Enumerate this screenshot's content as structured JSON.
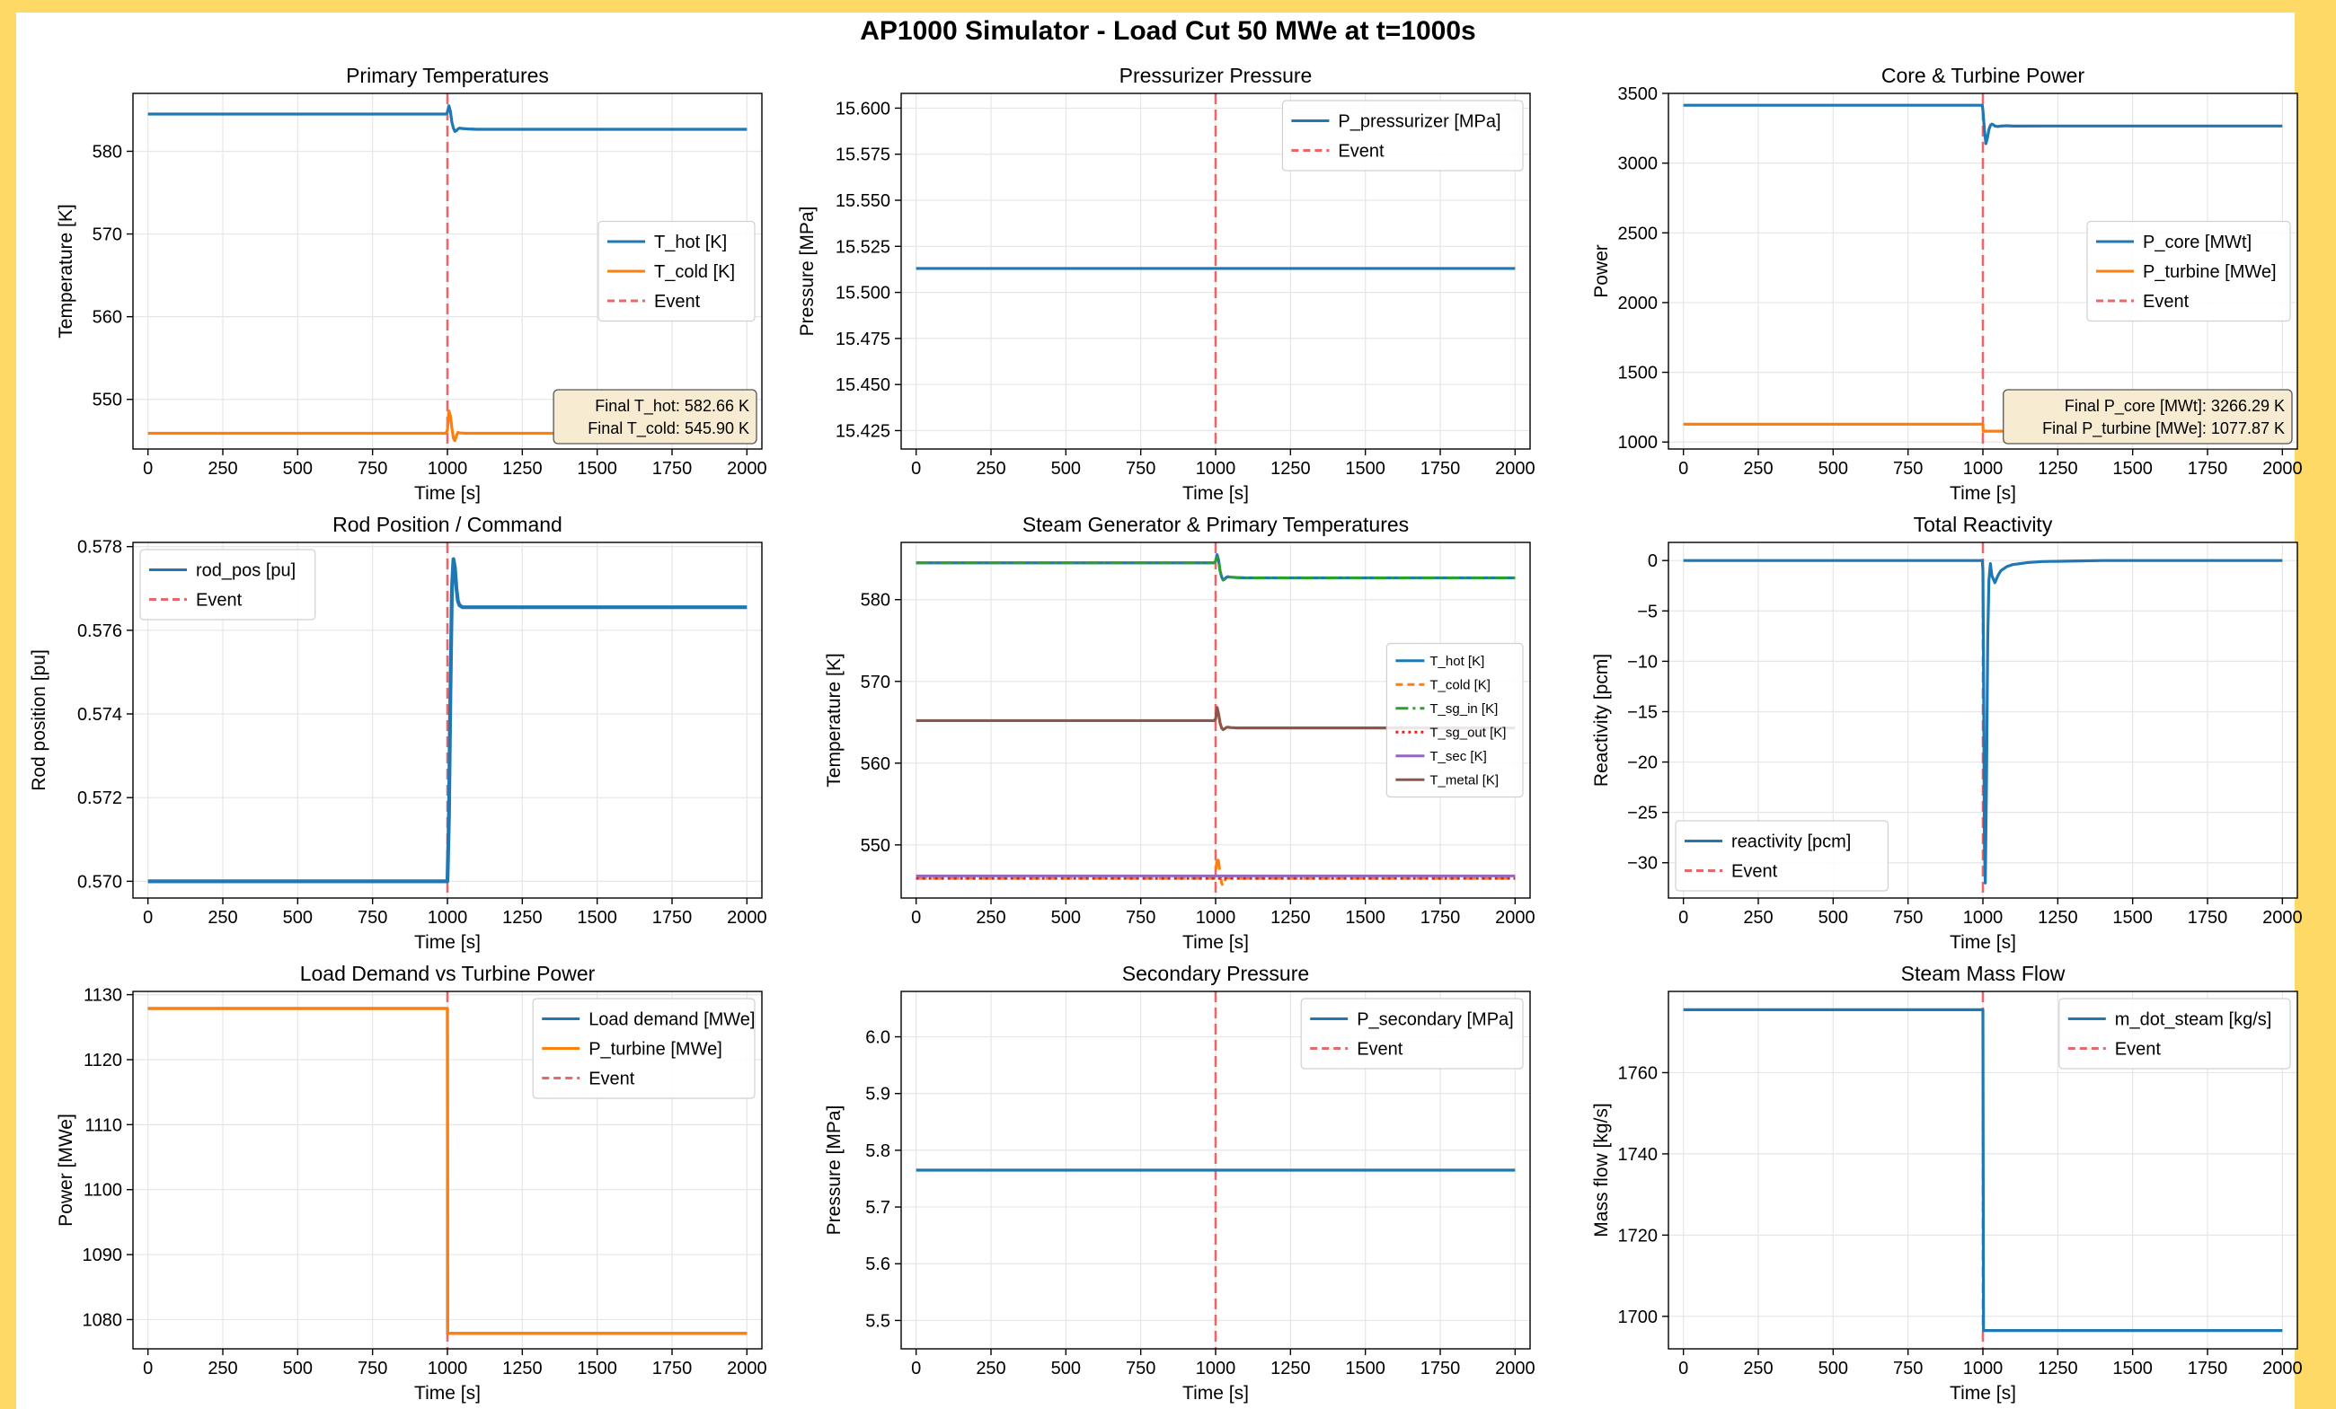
{
  "suptitle": "AP1000 Simulator - Load Cut 50 MWe at t=1000s",
  "colors": {
    "blue": "#1f77b4",
    "orange": "#ff7f0e",
    "green": "#2ca02c",
    "red": "#d62728",
    "purple": "#9467bd",
    "brown": "#8c564b",
    "event": "#e8676a"
  },
  "chart_data": [
    {
      "type": "line",
      "title": "Primary Temperatures",
      "xlabel": "Time [s]",
      "ylabel": "Temperature [K]",
      "xlim": [
        -50,
        2050
      ],
      "ylim": [
        544,
        587
      ],
      "xticks": [
        0,
        250,
        500,
        750,
        1000,
        1250,
        1500,
        1750,
        2000
      ],
      "yticks": [
        550,
        560,
        570,
        580
      ],
      "grid": true,
      "legend": "center-right",
      "event_x": 1000,
      "series": [
        {
          "name": "T_hot [K]",
          "color": "#1f77b4",
          "style": "solid",
          "width": 3.2,
          "x": [
            0,
            995,
            1000,
            1005,
            1010,
            1015,
            1020,
            1025,
            1030,
            1035,
            1040,
            1050,
            1070,
            1100,
            1200,
            2000
          ],
          "y": [
            584.5,
            584.5,
            584.7,
            585.5,
            584.8,
            583.5,
            582.8,
            582.4,
            582.5,
            582.7,
            582.8,
            582.75,
            582.7,
            582.66,
            582.66,
            582.66
          ]
        },
        {
          "name": "T_cold [K]",
          "color": "#ff7f0e",
          "style": "solid",
          "width": 3.2,
          "x": [
            0,
            995,
            1000,
            1005,
            1010,
            1015,
            1020,
            1025,
            1030,
            1035,
            1040,
            1060,
            1100,
            2000
          ],
          "y": [
            545.9,
            545.9,
            546.3,
            548.6,
            548.0,
            546.5,
            545.3,
            545.0,
            545.6,
            546.0,
            545.95,
            545.9,
            545.9,
            545.9
          ]
        }
      ],
      "annotation": [
        "Final T_hot: 582.66 K",
        "Final T_cold: 545.90 K"
      ],
      "legend_entries": [
        {
          "label": "T_hot [K]",
          "color": "#1f77b4",
          "style": "solid"
        },
        {
          "label": "T_cold [K]",
          "color": "#ff7f0e",
          "style": "solid"
        },
        {
          "label": "Event",
          "color": "#e8676a",
          "style": "dashed"
        }
      ]
    },
    {
      "type": "line",
      "title": "Pressurizer Pressure",
      "xlabel": "Time [s]",
      "ylabel": "Pressure [MPa]",
      "xlim": [
        -50,
        2050
      ],
      "ylim": [
        15.415,
        15.608
      ],
      "xticks": [
        0,
        250,
        500,
        750,
        1000,
        1250,
        1500,
        1750,
        2000
      ],
      "yticks": [
        15.425,
        15.45,
        15.475,
        15.5,
        15.525,
        15.55,
        15.575,
        15.6
      ],
      "ytick_labels": [
        "15.425",
        "15.450",
        "15.475",
        "15.500",
        "15.525",
        "15.550",
        "15.575",
        "15.600"
      ],
      "grid": true,
      "legend": "upper-right",
      "event_x": 1000,
      "series": [
        {
          "name": "P_pressurizer [MPa]",
          "color": "#1f77b4",
          "style": "solid",
          "width": 3.2,
          "x": [
            0,
            2000
          ],
          "y": [
            15.513,
            15.513
          ]
        }
      ],
      "legend_entries": [
        {
          "label": "P_pressurizer [MPa]",
          "color": "#1f77b4",
          "style": "solid"
        },
        {
          "label": "Event",
          "color": "#e8676a",
          "style": "dashed"
        }
      ]
    },
    {
      "type": "line",
      "title": "Core & Turbine Power",
      "xlabel": "Time [s]",
      "ylabel": "Power",
      "xlim": [
        -50,
        2050
      ],
      "ylim": [
        950,
        3500
      ],
      "xticks": [
        0,
        250,
        500,
        750,
        1000,
        1250,
        1500,
        1750,
        2000
      ],
      "yticks": [
        1000,
        1500,
        2000,
        2500,
        3000,
        3500
      ],
      "grid": true,
      "legend": "center-right",
      "event_x": 1000,
      "series": [
        {
          "name": "P_core [MWt]",
          "color": "#1f77b4",
          "style": "solid",
          "width": 3.2,
          "x": [
            0,
            998,
            1000,
            1005,
            1010,
            1015,
            1020,
            1025,
            1030,
            1035,
            1040,
            1050,
            1060,
            1080,
            1100,
            1200,
            2000
          ],
          "y": [
            3415,
            3415,
            3380,
            3240,
            3140,
            3180,
            3240,
            3270,
            3280,
            3275,
            3266,
            3262,
            3266,
            3268,
            3266,
            3266.29,
            3266.29
          ]
        },
        {
          "name": "P_turbine [MWe]",
          "color": "#ff7f0e",
          "style": "solid",
          "width": 3.2,
          "x": [
            0,
            1000,
            1001,
            2000
          ],
          "y": [
            1127.87,
            1127.87,
            1077.87,
            1077.87
          ]
        }
      ],
      "annotation": [
        "Final P_core [MWt]: 3266.29 K",
        "Final P_turbine [MWe]: 1077.87 K"
      ],
      "legend_entries": [
        {
          "label": "P_core [MWt]",
          "color": "#1f77b4",
          "style": "solid"
        },
        {
          "label": "P_turbine [MWe]",
          "color": "#ff7f0e",
          "style": "solid"
        },
        {
          "label": "Event",
          "color": "#e8676a",
          "style": "dashed"
        }
      ]
    },
    {
      "type": "line",
      "title": "Rod Position / Command",
      "xlabel": "Time [s]",
      "ylabel": "Rod position [pu]",
      "xlim": [
        -50,
        2050
      ],
      "ylim": [
        0.5696,
        0.5781
      ],
      "xticks": [
        0,
        250,
        500,
        750,
        1000,
        1250,
        1500,
        1750,
        2000
      ],
      "yticks": [
        0.57,
        0.572,
        0.574,
        0.576,
        0.578
      ],
      "ytick_labels": [
        "0.570",
        "0.572",
        "0.574",
        "0.576",
        "0.578"
      ],
      "grid": true,
      "legend": "upper-left",
      "event_x": 1000,
      "series": [
        {
          "name": "rod_pos [pu]",
          "color": "#1f77b4",
          "style": "solid",
          "width": 4.2,
          "x": [
            0,
            1000,
            1005,
            1010,
            1015,
            1020,
            1025,
            1030,
            1035,
            1040,
            1050,
            1060,
            1080,
            1100,
            2000
          ],
          "y": [
            0.57,
            0.57,
            0.5715,
            0.5745,
            0.577,
            0.5777,
            0.5775,
            0.577,
            0.5767,
            0.5766,
            0.57655,
            0.57655,
            0.57655,
            0.57655,
            0.57655
          ]
        }
      ],
      "legend_entries": [
        {
          "label": "rod_pos [pu]",
          "color": "#1f77b4",
          "style": "solid"
        },
        {
          "label": "Event",
          "color": "#e8676a",
          "style": "dashed"
        }
      ]
    },
    {
      "type": "line",
      "title": "Steam Generator & Primary Temperatures",
      "xlabel": "Time [s]",
      "ylabel": "Temperature [K]",
      "xlim": [
        -50,
        2050
      ],
      "ylim": [
        543.5,
        587
      ],
      "xticks": [
        0,
        250,
        500,
        750,
        1000,
        1250,
        1500,
        1750,
        2000
      ],
      "yticks": [
        550,
        560,
        570,
        580
      ],
      "grid": true,
      "legend": "center-right",
      "legend_small": true,
      "event_x": 1000,
      "series": [
        {
          "name": "T_hot [K]",
          "color": "#1f77b4",
          "style": "solid",
          "width": 3.2,
          "x": [
            0,
            995,
            1000,
            1005,
            1010,
            1015,
            1020,
            1025,
            1030,
            1035,
            1040,
            1050,
            1070,
            1100,
            2000
          ],
          "y": [
            584.5,
            584.5,
            584.7,
            585.5,
            584.8,
            583.5,
            582.8,
            582.4,
            582.5,
            582.7,
            582.8,
            582.75,
            582.7,
            582.66,
            582.66
          ]
        },
        {
          "name": "T_cold [K]",
          "color": "#ff7f0e",
          "style": "dashed",
          "width": 3,
          "x": [
            0,
            995,
            1000,
            1005,
            1010,
            1015,
            1020,
            1025,
            1030,
            1035,
            1040,
            1060,
            2000
          ],
          "y": [
            545.9,
            545.9,
            546.3,
            548.6,
            548.0,
            546.5,
            545.3,
            545.0,
            545.6,
            546.0,
            545.95,
            545.9,
            545.9
          ]
        },
        {
          "name": "T_sg_in [K]",
          "color": "#2ca02c",
          "style": "dashdot",
          "width": 3,
          "x": [
            0,
            995,
            1000,
            1005,
            1010,
            1015,
            1020,
            1025,
            1030,
            1035,
            1040,
            1050,
            1070,
            1100,
            2000
          ],
          "y": [
            584.5,
            584.5,
            584.7,
            585.5,
            584.8,
            583.5,
            582.8,
            582.4,
            582.5,
            582.7,
            582.8,
            582.75,
            582.7,
            582.66,
            582.66
          ]
        },
        {
          "name": "T_sg_out [K]",
          "color": "#d62728",
          "style": "dotted",
          "width": 3,
          "x": [
            0,
            2000
          ],
          "y": [
            545.9,
            545.9
          ]
        },
        {
          "name": "T_sec [K]",
          "color": "#9467bd",
          "style": "solid",
          "width": 3,
          "x": [
            0,
            2000
          ],
          "y": [
            546.2,
            546.2
          ]
        },
        {
          "name": "T_metal [K]",
          "color": "#8c564b",
          "style": "solid",
          "width": 3.2,
          "x": [
            0,
            995,
            1000,
            1005,
            1010,
            1015,
            1020,
            1025,
            1030,
            1035,
            1040,
            1050,
            1070,
            1100,
            2000
          ],
          "y": [
            565.2,
            565.2,
            565.4,
            566.8,
            566.0,
            564.9,
            564.3,
            564.1,
            564.2,
            564.35,
            564.4,
            564.35,
            564.3,
            564.3,
            564.3
          ]
        }
      ],
      "legend_entries": [
        {
          "label": "T_hot [K]",
          "color": "#1f77b4",
          "style": "solid"
        },
        {
          "label": "T_cold [K]",
          "color": "#ff7f0e",
          "style": "dashed"
        },
        {
          "label": "T_sg_in [K]",
          "color": "#2ca02c",
          "style": "dashdot"
        },
        {
          "label": "T_sg_out [K]",
          "color": "#d62728",
          "style": "dotted"
        },
        {
          "label": "T_sec [K]",
          "color": "#9467bd",
          "style": "solid"
        },
        {
          "label": "T_metal [K]",
          "color": "#8c564b",
          "style": "solid"
        }
      ]
    },
    {
      "type": "line",
      "title": "Total Reactivity",
      "xlabel": "Time [s]",
      "ylabel": "Reactivity [pcm]",
      "xlim": [
        -50,
        2050
      ],
      "ylim": [
        -33.5,
        1.8
      ],
      "xticks": [
        0,
        250,
        500,
        750,
        1000,
        1250,
        1500,
        1750,
        2000
      ],
      "yticks": [
        -30,
        -25,
        -20,
        -15,
        -10,
        -5,
        0
      ],
      "grid": true,
      "legend": "lower-left",
      "event_x": 1000,
      "series": [
        {
          "name": "reactivity [pcm]",
          "color": "#1f77b4",
          "style": "solid",
          "width": 3.2,
          "x": [
            0,
            998,
            1000,
            1003,
            1005,
            1008,
            1012,
            1016,
            1020,
            1025,
            1030,
            1040,
            1050,
            1060,
            1080,
            1100,
            1150,
            1200,
            1300,
            1400,
            2000
          ],
          "y": [
            0,
            0,
            -1,
            -15,
            -28,
            -32,
            -22,
            -8,
            -2,
            -0.3,
            -1.5,
            -2.2,
            -1.5,
            -1.0,
            -0.6,
            -0.4,
            -0.2,
            -0.1,
            -0.05,
            0,
            0
          ]
        }
      ],
      "legend_entries": [
        {
          "label": "reactivity [pcm]",
          "color": "#1f77b4",
          "style": "solid"
        },
        {
          "label": "Event",
          "color": "#e8676a",
          "style": "dashed"
        }
      ]
    },
    {
      "type": "line",
      "title": "Load Demand vs Turbine Power",
      "xlabel": "Time [s]",
      "ylabel": "Power [MWe]",
      "xlim": [
        -50,
        2050
      ],
      "ylim": [
        1075.5,
        1130.5
      ],
      "xticks": [
        0,
        250,
        500,
        750,
        1000,
        1250,
        1500,
        1750,
        2000
      ],
      "yticks": [
        1080,
        1090,
        1100,
        1110,
        1120,
        1130
      ],
      "grid": true,
      "legend": "upper-right",
      "event_x": 1000,
      "series": [
        {
          "name": "Load demand [MWe]",
          "color": "#1f77b4",
          "style": "solid",
          "width": 3.2,
          "x": [
            0,
            1000,
            1000.5,
            2000
          ],
          "y": [
            1127.87,
            1127.87,
            1077.87,
            1077.87
          ]
        },
        {
          "name": "P_turbine [MWe]",
          "color": "#ff7f0e",
          "style": "solid",
          "width": 3.2,
          "x": [
            0,
            1000,
            1001,
            2000
          ],
          "y": [
            1127.87,
            1127.87,
            1077.87,
            1077.87
          ]
        }
      ],
      "legend_entries": [
        {
          "label": "Load demand [MWe]",
          "color": "#1f77b4",
          "style": "solid"
        },
        {
          "label": "P_turbine [MWe]",
          "color": "#ff7f0e",
          "style": "solid"
        },
        {
          "label": "Event",
          "color": "#e8676a",
          "style": "dashed"
        }
      ]
    },
    {
      "type": "line",
      "title": "Secondary Pressure",
      "xlabel": "Time [s]",
      "ylabel": "Pressure [MPa]",
      "xlim": [
        -50,
        2050
      ],
      "ylim": [
        5.45,
        6.08
      ],
      "xticks": [
        0,
        250,
        500,
        750,
        1000,
        1250,
        1500,
        1750,
        2000
      ],
      "yticks": [
        5.5,
        5.6,
        5.7,
        5.8,
        5.9,
        6.0
      ],
      "ytick_labels": [
        "5.5",
        "5.6",
        "5.7",
        "5.8",
        "5.9",
        "6.0"
      ],
      "grid": true,
      "legend": "upper-right",
      "event_x": 1000,
      "series": [
        {
          "name": "P_secondary [MPa]",
          "color": "#1f77b4",
          "style": "solid",
          "width": 3.2,
          "x": [
            0,
            2000
          ],
          "y": [
            5.765,
            5.765
          ]
        }
      ],
      "legend_entries": [
        {
          "label": "P_secondary [MPa]",
          "color": "#1f77b4",
          "style": "solid"
        },
        {
          "label": "Event",
          "color": "#e8676a",
          "style": "dashed"
        }
      ]
    },
    {
      "type": "line",
      "title": "Steam Mass Flow",
      "xlabel": "Time [s]",
      "ylabel": "Mass flow [kg/s]",
      "xlim": [
        -50,
        2050
      ],
      "ylim": [
        1692,
        1780
      ],
      "xticks": [
        0,
        250,
        500,
        750,
        1000,
        1250,
        1500,
        1750,
        2000
      ],
      "yticks": [
        1700,
        1720,
        1740,
        1760
      ],
      "grid": true,
      "legend": "upper-right",
      "event_x": 1000,
      "series": [
        {
          "name": "m_dot_steam [kg/s]",
          "color": "#1f77b4",
          "style": "solid",
          "width": 3.2,
          "x": [
            0,
            1000,
            1002,
            2000
          ],
          "y": [
            1775.5,
            1775.5,
            1696.5,
            1696.5
          ]
        }
      ],
      "legend_entries": [
        {
          "label": "m_dot_steam [kg/s]",
          "color": "#1f77b4",
          "style": "solid"
        },
        {
          "label": "Event",
          "color": "#e8676a",
          "style": "dashed"
        }
      ]
    }
  ]
}
